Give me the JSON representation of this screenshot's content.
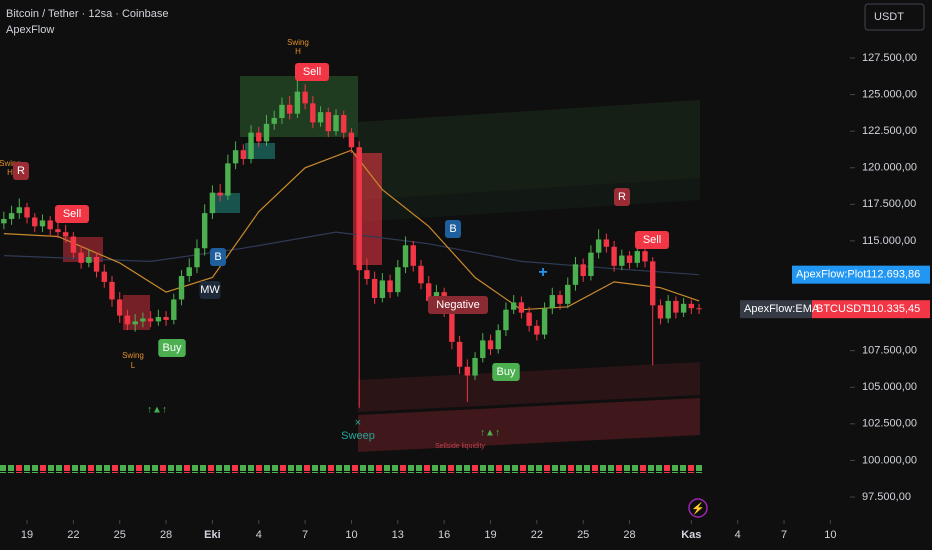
{
  "header": {
    "symbol": "Bitcoin / Tether · 12sa · Coinbase",
    "indicator": "ApexFlow",
    "currency": "USDT"
  },
  "chart_data": {
    "type": "candlestick",
    "x": [
      -1.5,
      -1,
      -0.5,
      0,
      0.5,
      1,
      1.5,
      2,
      2.5,
      3,
      3.5,
      4,
      4.5,
      5,
      5.5,
      6,
      6.5,
      7,
      7.5,
      8,
      8.5,
      9,
      9.5,
      10,
      10.5,
      11,
      11.5,
      12,
      12.5,
      13,
      13.5,
      14,
      14.5,
      15,
      15.5,
      16,
      16.5,
      17,
      17.5,
      18,
      18.5,
      19,
      19.5,
      20,
      20.5,
      21,
      21.5,
      22,
      22.5,
      23,
      23.5,
      24,
      24.5,
      25,
      25.5,
      26,
      26.5,
      27,
      27.5,
      28,
      28.5,
      29,
      29.5,
      30,
      30.5,
      31,
      31.5,
      32,
      32.5,
      33,
      33.5,
      34,
      34.5,
      35,
      35.5,
      36,
      36.5,
      37,
      37.5,
      38,
      38.5,
      39,
      39.5,
      40,
      40.5,
      41,
      41.5,
      42,
      42.5,
      43,
      43.5
    ],
    "open": [
      116200,
      116500,
      116900,
      117300,
      116600,
      116000,
      116400,
      115800,
      115600,
      115300,
      114200,
      113500,
      113900,
      112900,
      112200,
      111000,
      109900,
      109300,
      109500,
      109700,
      109500,
      109800,
      109600,
      111000,
      112600,
      113200,
      114500,
      116900,
      118300,
      118100,
      120300,
      121200,
      120600,
      122400,
      121800,
      123000,
      123400,
      124300,
      123700,
      125200,
      124400,
      123100,
      123800,
      122500,
      123600,
      122400,
      121400,
      113000,
      112400,
      111100,
      112300,
      111500,
      113200,
      114700,
      113300,
      112100,
      110900,
      111500,
      110200,
      108100,
      106400,
      105800,
      107000,
      108200,
      107600,
      108900,
      110300,
      110800,
      110100,
      109200,
      108600,
      110400,
      111300,
      110700,
      112000,
      113400,
      112600,
      114200,
      115100,
      114600,
      113300,
      114000,
      113500,
      114300,
      113600,
      110600,
      109700,
      110900,
      110100,
      110700,
      110400
    ],
    "high": [
      117000,
      117400,
      117900,
      117600,
      116900,
      116800,
      116700,
      116300,
      116100,
      115600,
      114700,
      114400,
      114200,
      113400,
      112600,
      111500,
      110300,
      110000,
      110100,
      110200,
      110300,
      110200,
      111400,
      113000,
      113800,
      115100,
      117500,
      118800,
      118900,
      120900,
      121800,
      121600,
      122900,
      122800,
      123600,
      123900,
      124800,
      124900,
      126400,
      125700,
      124900,
      124200,
      124100,
      124000,
      123900,
      122700,
      121800,
      113800,
      112900,
      112800,
      112700,
      113700,
      115300,
      115000,
      113700,
      112600,
      112000,
      111800,
      110600,
      108500,
      106900,
      107400,
      108700,
      108600,
      109300,
      110800,
      111300,
      111200,
      110500,
      109600,
      110800,
      111800,
      111600,
      112500,
      113900,
      113800,
      114700,
      115800,
      115500,
      115000,
      114400,
      114300,
      114800,
      114600,
      113900,
      111000,
      111300,
      111200,
      111100,
      111000,
      110700
    ],
    "low": [
      115800,
      116100,
      116500,
      116200,
      115600,
      115600,
      115300,
      115200,
      114900,
      113800,
      113100,
      113200,
      112500,
      111800,
      110500,
      109400,
      108900,
      108800,
      109100,
      109100,
      109200,
      109200,
      109300,
      110600,
      112200,
      112800,
      114000,
      116500,
      117700,
      117800,
      119900,
      120200,
      120300,
      121400,
      121500,
      122600,
      123000,
      123300,
      123400,
      124000,
      122700,
      122800,
      122100,
      122200,
      122000,
      121000,
      103600,
      112000,
      110700,
      110800,
      111100,
      111200,
      112800,
      112900,
      111700,
      110500,
      110600,
      109800,
      107600,
      105900,
      104000,
      105500,
      106700,
      107200,
      107300,
      108500,
      110000,
      109700,
      108800,
      108200,
      108300,
      110000,
      110300,
      110400,
      111600,
      112200,
      112300,
      113800,
      114200,
      112900,
      113000,
      113100,
      113200,
      113200,
      106500,
      109300,
      109400,
      109700,
      109800,
      110000,
      110000
    ],
    "close": [
      116500,
      116900,
      117300,
      116600,
      116000,
      116400,
      115800,
      115600,
      115300,
      114200,
      113500,
      113900,
      112900,
      112200,
      111000,
      109900,
      109300,
      109500,
      109700,
      109500,
      109800,
      109600,
      111000,
      112600,
      113200,
      114500,
      116900,
      118300,
      118100,
      120300,
      121200,
      120600,
      122400,
      121800,
      123000,
      123400,
      124300,
      123700,
      125200,
      124400,
      123100,
      123800,
      122500,
      123600,
      122400,
      121400,
      113000,
      112400,
      111100,
      112300,
      111500,
      113200,
      114700,
      113300,
      112100,
      110900,
      111500,
      110200,
      108100,
      106400,
      105800,
      107000,
      108200,
      107600,
      108900,
      110300,
      110800,
      110100,
      109200,
      108600,
      110400,
      111300,
      110700,
      112000,
      113400,
      112600,
      114200,
      115100,
      114600,
      113300,
      114000,
      113500,
      114300,
      113600,
      110600,
      109700,
      110900,
      110100,
      110700,
      110400,
      110335.45
    ],
    "up_color": "#4caf50",
    "down_color": "#f23645",
    "xlim": [
      -1.75,
      53.27
    ],
    "xticks": [
      {
        "value": 0,
        "label": "19"
      },
      {
        "value": 3,
        "label": "22"
      },
      {
        "value": 6,
        "label": "25"
      },
      {
        "value": 9,
        "label": "28"
      },
      {
        "value": 12,
        "label": "Eki"
      },
      {
        "value": 15,
        "label": "4"
      },
      {
        "value": 18,
        "label": "7"
      },
      {
        "value": 21,
        "label": "10"
      },
      {
        "value": 24,
        "label": "13"
      },
      {
        "value": 27,
        "label": "16"
      },
      {
        "value": 30,
        "label": "19"
      },
      {
        "value": 33,
        "label": "22"
      },
      {
        "value": 36,
        "label": "25"
      },
      {
        "value": 39,
        "label": "28"
      },
      {
        "value": 43,
        "label": "Kas"
      },
      {
        "value": 46,
        "label": "4"
      },
      {
        "value": 49,
        "label": "7"
      },
      {
        "value": 52,
        "label": "10"
      }
    ],
    "ylim": [
      95928,
      131464
    ],
    "yticks": [
      {
        "value": 97500,
        "label": "97.500,00"
      },
      {
        "value": 100000,
        "label": "100.000,00"
      },
      {
        "value": 102500,
        "label": "102.500,00"
      },
      {
        "value": 105000,
        "label": "105.000,00"
      },
      {
        "value": 107500,
        "label": "107.500,00"
      },
      {
        "value": 110000,
        "label": "110.000,00"
      },
      {
        "value": 112500,
        "label": "112.500,00"
      },
      {
        "value": 115000,
        "label": "115.000,00"
      },
      {
        "value": 117500,
        "label": "117.500,00"
      },
      {
        "value": 120000,
        "label": "120.000,00"
      },
      {
        "value": 122500,
        "label": "122.500,00"
      },
      {
        "value": 125000,
        "label": "125.000,00"
      },
      {
        "value": 127500,
        "label": "127.500,00"
      }
    ],
    "grid": false,
    "lines": [
      {
        "name": "ApexFlow:Plot",
        "color": "#2f3a56",
        "x": [
          -1.5,
          8,
          14,
          20,
          26,
          32,
          38,
          43.5
        ],
        "values": [
          114000,
          113600,
          114500,
          115600,
          114800,
          113600,
          113100,
          112693.86
        ]
      },
      {
        "name": "ApexFlow:EMA",
        "color": "#c98a2c",
        "x": [
          -1.5,
          2,
          6,
          9,
          12,
          15,
          18,
          21,
          23,
          26,
          29,
          32,
          35,
          38,
          41,
          43.5
        ],
        "values": [
          115500,
          115300,
          113500,
          111500,
          112500,
          117000,
          120000,
          121200,
          118500,
          116000,
          112500,
          110300,
          110500,
          112200,
          111800,
          110900
        ]
      }
    ],
    "price_labels": [
      {
        "name": "ApexFlow:Plot",
        "value": 112693.86,
        "label": "112.693,86",
        "color": "#2196f3"
      },
      {
        "name": "BTCUSDT",
        "value": 110335.45,
        "label": "110.335,45",
        "color": "#f23645"
      }
    ],
    "annotations": [
      "Swing",
      "H",
      "Sell",
      "Swing",
      "H",
      "R",
      "Sell",
      "B",
      "MW",
      "Swing",
      "L",
      "Buy",
      "↑▲↑",
      "B",
      "Negative",
      "Buy",
      "×",
      "Sweep",
      "Sellside liquidity",
      "↑▲↑",
      "R",
      "Sell"
    ]
  }
}
